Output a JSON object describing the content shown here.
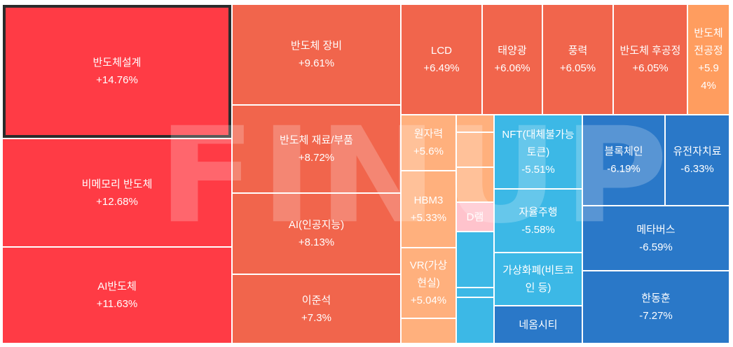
{
  "watermark": "FINUP",
  "colors": {
    "up_strong": "#ff3b45",
    "up_mid": "#f1654c",
    "up_light": "#ff9d5f",
    "up_pale": "#ffb07d",
    "down_light": "#3cb8e6",
    "down_mid": "#2e86d1",
    "down_strong": "#2a78c8",
    "selected_border": "#2b2b2b"
  },
  "chart_data": {
    "type": "treemap",
    "title": "",
    "items": [
      {
        "name": "반도체설계",
        "change": "+14.76%",
        "value": 14.76,
        "color": "#ff3b45",
        "selected": true
      },
      {
        "name": "비메모리 반도체",
        "change": "+12.68%",
        "value": 12.68,
        "color": "#ff3b45"
      },
      {
        "name": "AI반도체",
        "change": "+11.63%",
        "value": 11.63,
        "color": "#ff3b45"
      },
      {
        "name": "반도체 장비",
        "change": "+9.61%",
        "value": 9.61,
        "color": "#f1654c"
      },
      {
        "name": "반도체 재료/부품",
        "change": "+8.72%",
        "value": 8.72,
        "color": "#f1654c"
      },
      {
        "name": "AI(인공지능)",
        "change": "+8.13%",
        "value": 8.13,
        "color": "#f1654c"
      },
      {
        "name": "이준석",
        "change": "+7.3%",
        "value": 7.3,
        "color": "#f1654c"
      },
      {
        "name": "LCD",
        "change": "+6.49%",
        "value": 6.49,
        "color": "#f1654c"
      },
      {
        "name": "태양광",
        "change": "+6.06%",
        "value": 6.06,
        "color": "#f1654c"
      },
      {
        "name": "풍력",
        "change": "+6.05%",
        "value": 6.05,
        "color": "#f1654c"
      },
      {
        "name": "반도체 후공정",
        "change": "+6.05%",
        "value": 6.05,
        "color": "#f1654c"
      },
      {
        "name": "반도체 전공정",
        "change": "+5.94%",
        "value": 5.94,
        "color": "#ff9d5f"
      },
      {
        "name": "원자력",
        "change": "+5.6%",
        "value": 5.6,
        "color": "#ffb07d"
      },
      {
        "name": "HBM3",
        "change": "+5.33%",
        "value": 5.33,
        "color": "#ffb07d"
      },
      {
        "name": "VR(가상현실)",
        "change": "+5.04%",
        "value": 5.04,
        "color": "#ffb07d"
      },
      {
        "name": "D램",
        "change": "",
        "value": null,
        "color": "#ffc3cc"
      },
      {
        "name": "NFT(대체불가능토큰)",
        "change": "-5.51%",
        "value": -5.51,
        "color": "#3cb8e6"
      },
      {
        "name": "자율주행",
        "change": "-5.58%",
        "value": -5.58,
        "color": "#3cb8e6"
      },
      {
        "name": "가상화폐(비트코인 등)",
        "change": "",
        "value": null,
        "color": "#3cb8e6"
      },
      {
        "name": "네옴시티",
        "change": "",
        "value": null,
        "color": "#2a78c8"
      },
      {
        "name": "블록체인",
        "change": "-6.19%",
        "value": -6.19,
        "color": "#2a78c8"
      },
      {
        "name": "유전자치료",
        "change": "-6.33%",
        "value": -6.33,
        "color": "#2a78c8"
      },
      {
        "name": "메타버스",
        "change": "-6.59%",
        "value": -6.59,
        "color": "#2a78c8"
      },
      {
        "name": "한동훈",
        "change": "-7.27%",
        "value": -7.27,
        "color": "#2a78c8"
      },
      {
        "name": "",
        "change": "",
        "value": null,
        "color": "#ffb07d"
      },
      {
        "name": "",
        "change": "",
        "value": null,
        "color": "#ffb07d"
      },
      {
        "name": "",
        "change": "",
        "value": null,
        "color": "#ffb07d"
      },
      {
        "name": "",
        "change": "",
        "value": null,
        "color": "#ffb07d"
      },
      {
        "name": "",
        "change": "",
        "value": null,
        "color": "#3cb8e6"
      },
      {
        "name": "",
        "change": "",
        "value": null,
        "color": "#3cb8e6"
      },
      {
        "name": "",
        "change": "",
        "value": null,
        "color": "#3cb8e6"
      },
      {
        "name": "",
        "change": "",
        "value": null,
        "color": "#3cb8e6"
      },
      {
        "name": "",
        "change": "",
        "value": null,
        "color": "#3cb8e6"
      }
    ]
  }
}
